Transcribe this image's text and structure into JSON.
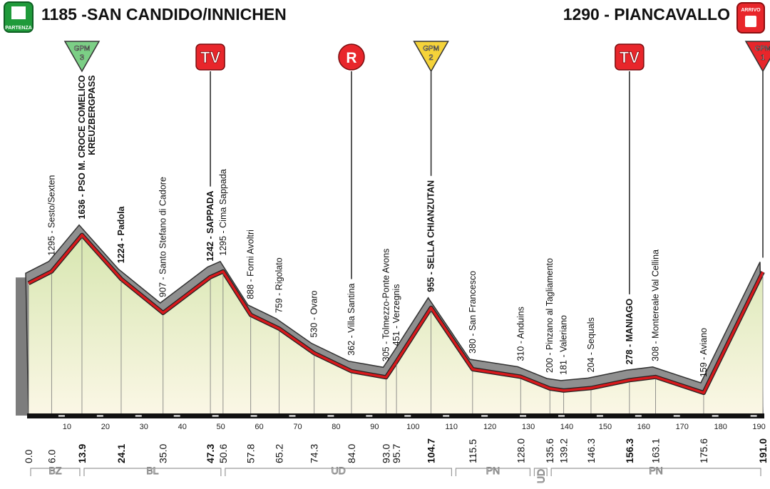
{
  "chart_data": {
    "type": "area",
    "start": {
      "title": "1185 -SAN CANDIDO/INNICHEN",
      "badge": "PARTENZA"
    },
    "finish": {
      "title": "1290 - PIANCAVALLO",
      "badge": "ARRIVO"
    },
    "x": [
      0,
      6,
      13.9,
      24.1,
      35,
      47.3,
      50.6,
      57.8,
      65.2,
      74.3,
      84,
      93,
      95.7,
      104.7,
      115.5,
      128,
      135.6,
      139.2,
      146.3,
      156.3,
      163.1,
      175.6,
      191
    ],
    "x_labels": [
      "0.0",
      "6.0",
      "13.9",
      "24.1",
      "35.0",
      "47.3",
      "50.6",
      "57.8",
      "65.2",
      "74.3",
      "84.0",
      "93.0",
      "95.7",
      "104.7",
      "115.5",
      "128.0",
      "135.6",
      "139.2",
      "146.3",
      "156.3",
      "163.1",
      "175.6",
      "191.0"
    ],
    "values": [
      1185,
      1295,
      1636,
      1224,
      907,
      1242,
      1295,
      888,
      759,
      530,
      362,
      305,
      451,
      955,
      380,
      310,
      200,
      181,
      204,
      278,
      308,
      159,
      1290
    ],
    "point_labels": [
      null,
      "1295 - Sesto/Sexten",
      "1636 - PSO M. CROCE COMELICO",
      "1224 - Padola",
      "907 - Santo Stefano di Cadore",
      "1242 - SAPPADA",
      "1295 - Cima Sappada",
      "888 - Forni Avoltri",
      "759 - Rigolato",
      "530 - Ovaro",
      "362 - Villa Santina",
      "305 - Tolmezzo-Ponte Avons",
      "451 - Verzegnis",
      "955 - SELLA CHIANZUTAN",
      "380 - San Francesco",
      "310 - Anduins",
      "200 - Pinzano al Tagliamento",
      "181 - Valeriano",
      "204 - Sequals",
      "278 - MANIAGO",
      "308 - Montereale Val Cellina",
      "159 - Aviano",
      null
    ],
    "emphasis": [
      false,
      false,
      true,
      true,
      false,
      true,
      false,
      false,
      false,
      false,
      false,
      false,
      false,
      true,
      false,
      false,
      false,
      false,
      false,
      true,
      false,
      false,
      true
    ],
    "extra_labels": [
      {
        "x": 13.9,
        "label": "KREUZBERGPASS"
      }
    ],
    "badges": [
      {
        "x": 13.9,
        "shape": "triangle",
        "text": "GPM",
        "number": 3,
        "color": "#7ccf86"
      },
      {
        "x": 47.3,
        "shape": "tv",
        "text": "TV",
        "color": "#e8262b"
      },
      {
        "x": 84,
        "shape": "circle",
        "text": "R",
        "color": "#e8262b"
      },
      {
        "x": 104.7,
        "shape": "triangle",
        "text": "GPM",
        "number": 2,
        "color": "#f5d33a"
      },
      {
        "x": 156.3,
        "shape": "tv",
        "text": "TV",
        "color": "#e8262b"
      },
      {
        "x": 191,
        "shape": "triangle",
        "text": "GPM",
        "number": 1,
        "color": "#e8262b"
      }
    ],
    "xlim": [
      0,
      191
    ],
    "xticks": [
      10,
      20,
      30,
      40,
      50,
      60,
      70,
      80,
      90,
      100,
      110,
      120,
      130,
      140,
      150,
      160,
      170,
      180,
      190
    ],
    "line_color": "#d7191c",
    "regions": [
      {
        "label": "BZ",
        "from": 0,
        "to": 13.9
      },
      {
        "label": "BL",
        "from": 13.9,
        "to": 50.6
      },
      {
        "label": "UD",
        "from": 50.6,
        "to": 110.6
      },
      {
        "label": "PN",
        "from": 110.6,
        "to": 131
      },
      {
        "label": "UD",
        "from": 131,
        "to": 135.4
      },
      {
        "label": "PN",
        "from": 135.4,
        "to": 191
      }
    ]
  }
}
